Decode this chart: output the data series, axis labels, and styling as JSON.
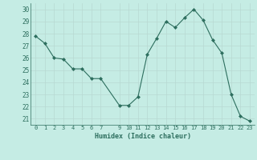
{
  "x": [
    0,
    1,
    2,
    3,
    4,
    5,
    6,
    7,
    9,
    10,
    11,
    12,
    13,
    14,
    15,
    16,
    17,
    18,
    19,
    20,
    21,
    22,
    23
  ],
  "y": [
    27.8,
    27.2,
    26.0,
    25.9,
    25.1,
    25.1,
    24.3,
    24.3,
    22.1,
    22.1,
    22.8,
    26.3,
    27.6,
    29.0,
    28.5,
    29.3,
    30.0,
    29.1,
    27.5,
    26.4,
    23.0,
    21.2,
    20.8
  ],
  "xlabel": "Humidex (Indice chaleur)",
  "xlim": [
    -0.5,
    23.5
  ],
  "ylim": [
    20.5,
    30.5
  ],
  "yticks": [
    21,
    22,
    23,
    24,
    25,
    26,
    27,
    28,
    29,
    30
  ],
  "xticks": [
    0,
    1,
    2,
    3,
    4,
    5,
    6,
    7,
    9,
    10,
    11,
    12,
    13,
    14,
    15,
    16,
    17,
    18,
    19,
    20,
    21,
    22,
    23
  ],
  "line_color": "#2d6e5e",
  "marker_color": "#2d6e5e",
  "bg_color": "#c5ece4",
  "grid_color": "#b8d8d2",
  "text_color": "#2d6e5e",
  "border_color": "#2d6e5e"
}
